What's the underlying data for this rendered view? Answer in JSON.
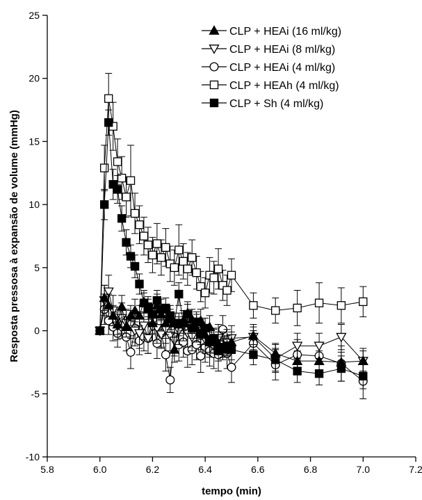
{
  "chart_data": {
    "type": "line",
    "xlabel": "tempo (min)",
    "ylabel": "Resposta pressosa à expansão de volume (mmHg)",
    "xlim": [
      5.8,
      7.2
    ],
    "ylim": [
      -10,
      25
    ],
    "xticks": [
      "5.8",
      "6.0",
      "6.2",
      "6.4",
      "6.6",
      "6.8",
      "7.0",
      "7.2"
    ],
    "yticks": [
      "-10",
      "-5",
      "0",
      "5",
      "10",
      "15",
      "20",
      "25"
    ],
    "grid": false,
    "legend_position": "top-right",
    "series": [
      {
        "name": "CLP + HEAi (16 ml/kg)",
        "marker": "triangle-up-filled",
        "x": [
          6.0,
          6.017,
          6.033,
          6.05,
          6.067,
          6.083,
          6.1,
          6.117,
          6.133,
          6.15,
          6.167,
          6.183,
          6.2,
          6.217,
          6.233,
          6.25,
          6.267,
          6.283,
          6.3,
          6.317,
          6.333,
          6.35,
          6.367,
          6.383,
          6.4,
          6.417,
          6.433,
          6.45,
          6.467,
          6.483,
          6.5,
          6.583,
          6.667,
          6.75,
          6.833,
          6.917,
          7.0
        ],
        "y": [
          0.0,
          2.6,
          2.0,
          1.2,
          0.5,
          1.9,
          0.3,
          1.2,
          1.6,
          1.2,
          2.3,
          1.7,
          0.6,
          2.0,
          1.3,
          0.6,
          0.9,
          -1.5,
          0.5,
          0.8,
          1.4,
          0.9,
          0.2,
          0.8,
          -0.3,
          0.3,
          -0.7,
          -1.0,
          -1.5,
          -1.2,
          -0.9,
          -0.4,
          -1.8,
          -2.4,
          -2.4,
          -2.5,
          -2.4
        ],
        "err": [
          0,
          1.0,
          0.9,
          0.8,
          0.8,
          0.9,
          0.8,
          0.8,
          0.9,
          0.8,
          0.9,
          0.8,
          0.9,
          0.9,
          0.8,
          0.9,
          0.8,
          1.0,
          0.9,
          0.8,
          0.9,
          0.8,
          0.8,
          0.9,
          0.8,
          0.9,
          0.8,
          0.9,
          0.8,
          0.8,
          0.8,
          0.7,
          0.8,
          0.8,
          0.8,
          0.8,
          0.8
        ]
      },
      {
        "name": "CLP + HEAi (8 ml/kg)",
        "marker": "triangle-down-open",
        "x": [
          6.0,
          6.017,
          6.033,
          6.05,
          6.067,
          6.083,
          6.1,
          6.117,
          6.133,
          6.15,
          6.167,
          6.183,
          6.2,
          6.217,
          6.233,
          6.25,
          6.267,
          6.283,
          6.3,
          6.317,
          6.333,
          6.35,
          6.367,
          6.383,
          6.4,
          6.417,
          6.433,
          6.45,
          6.467,
          6.483,
          6.5,
          6.583,
          6.667,
          6.75,
          6.833,
          6.917,
          7.0
        ],
        "y": [
          0.0,
          2.4,
          3.1,
          1.6,
          0.4,
          1.0,
          0.6,
          0.5,
          0.0,
          -0.2,
          0.4,
          -0.6,
          0.3,
          0.2,
          -0.3,
          0.1,
          -0.4,
          -0.8,
          0.0,
          0.4,
          -0.2,
          -0.5,
          0.2,
          -0.3,
          -0.7,
          -1.0,
          -0.8,
          -0.6,
          -1.1,
          -0.9,
          -0.6,
          -0.5,
          -2.2,
          -1.2,
          -1.2,
          -0.5,
          -2.4
        ],
        "err": [
          0,
          1.2,
          1.3,
          1.2,
          1.1,
          1.2,
          1.1,
          1.1,
          1.2,
          1.2,
          1.1,
          1.2,
          1.1,
          1.2,
          1.1,
          1.1,
          1.2,
          1.2,
          1.1,
          1.2,
          1.1,
          1.1,
          1.1,
          1.2,
          1.1,
          1.1,
          1.0,
          1.1,
          1.0,
          1.0,
          1.0,
          1.0,
          1.1,
          1.0,
          1.0,
          1.0,
          1.0
        ]
      },
      {
        "name": "CLP + HEAi (4 ml/kg)",
        "marker": "circle-open",
        "x": [
          6.0,
          6.017,
          6.033,
          6.05,
          6.067,
          6.083,
          6.1,
          6.117,
          6.133,
          6.15,
          6.167,
          6.183,
          6.2,
          6.217,
          6.233,
          6.25,
          6.267,
          6.283,
          6.3,
          6.317,
          6.333,
          6.35,
          6.367,
          6.383,
          6.4,
          6.417,
          6.433,
          6.45,
          6.467,
          6.483,
          6.5,
          6.583,
          6.667,
          6.75,
          6.833,
          6.917,
          7.0
        ],
        "y": [
          0.0,
          1.7,
          0.8,
          0.3,
          -0.2,
          0.6,
          -0.5,
          -1.7,
          0.2,
          -0.8,
          -0.5,
          -0.6,
          0.9,
          -1.0,
          -0.2,
          -1.9,
          -3.9,
          -0.5,
          -1.1,
          -0.9,
          -1.6,
          -1.5,
          -1.1,
          -2.0,
          -1.3,
          -1.6,
          -1.8,
          -1.9,
          0.1,
          -1.8,
          -2.9,
          -1.0,
          -2.7,
          -1.9,
          -2.0,
          -2.6,
          -4.0
        ],
        "err": [
          0,
          1.2,
          1.1,
          1.1,
          1.1,
          1.2,
          1.1,
          1.3,
          1.1,
          1.1,
          1.1,
          1.2,
          1.1,
          1.2,
          1.1,
          1.3,
          1.0,
          1.2,
          1.3,
          1.2,
          1.3,
          1.2,
          1.2,
          1.3,
          1.2,
          1.2,
          1.2,
          1.3,
          1.1,
          1.2,
          1.2,
          1.0,
          1.2,
          1.2,
          1.1,
          1.4,
          1.4
        ]
      },
      {
        "name": "CLP + HEAh (4 ml/kg)",
        "marker": "square-open",
        "x": [
          6.0,
          6.017,
          6.033,
          6.05,
          6.067,
          6.083,
          6.1,
          6.117,
          6.133,
          6.15,
          6.167,
          6.183,
          6.2,
          6.217,
          6.233,
          6.25,
          6.267,
          6.283,
          6.3,
          6.317,
          6.333,
          6.35,
          6.367,
          6.383,
          6.4,
          6.417,
          6.433,
          6.45,
          6.467,
          6.483,
          6.5,
          6.583,
          6.667,
          6.75,
          6.833,
          6.917,
          7.0
        ],
        "y": [
          0.0,
          12.9,
          18.4,
          16.2,
          13.4,
          12.1,
          10.6,
          11.9,
          9.3,
          8.4,
          7.5,
          6.8,
          6.0,
          6.9,
          5.8,
          6.6,
          5.3,
          5.0,
          6.4,
          5.5,
          4.9,
          5.8,
          4.6,
          3.5,
          3.0,
          4.4,
          4.2,
          4.9,
          3.6,
          3.2,
          4.4,
          2.0,
          1.6,
          1.8,
          2.2,
          2.0,
          2.3
        ],
        "err": [
          0,
          1.8,
          2.0,
          1.9,
          1.8,
          1.7,
          1.6,
          2.8,
          1.6,
          1.5,
          1.5,
          1.4,
          1.4,
          1.6,
          1.4,
          1.5,
          1.4,
          1.4,
          2.0,
          1.4,
          1.3,
          1.4,
          1.3,
          1.2,
          1.2,
          1.4,
          1.3,
          1.6,
          1.2,
          1.2,
          1.3,
          1.0,
          1.0,
          1.4,
          1.6,
          1.4,
          1.2
        ]
      },
      {
        "name": "CLP + Sh (4 ml/kg)",
        "marker": "square-filled",
        "x": [
          6.0,
          6.017,
          6.033,
          6.05,
          6.067,
          6.083,
          6.1,
          6.117,
          6.133,
          6.15,
          6.167,
          6.183,
          6.2,
          6.217,
          6.233,
          6.25,
          6.267,
          6.283,
          6.3,
          6.317,
          6.333,
          6.35,
          6.367,
          6.383,
          6.4,
          6.417,
          6.433,
          6.45,
          6.467,
          6.483,
          6.5,
          6.583,
          6.667,
          6.75,
          6.833,
          6.917,
          7.0
        ],
        "y": [
          0.0,
          10.0,
          16.5,
          11.6,
          11.2,
          8.9,
          7.0,
          5.9,
          5.1,
          3.7,
          2.2,
          1.9,
          1.3,
          2.4,
          1.7,
          1.8,
          1.2,
          0.6,
          2.9,
          0.6,
          1.3,
          0.2,
          0.7,
          -0.3,
          0.2,
          -0.9,
          -0.6,
          -1.6,
          -1.3,
          -1.2,
          -1.5,
          -1.9,
          -2.3,
          -3.2,
          -3.4,
          -3.0,
          -3.6
        ],
        "err": [
          0,
          1.2,
          1.0,
          1.2,
          1.1,
          1.0,
          1.0,
          0.9,
          0.9,
          0.8,
          0.8,
          0.8,
          0.8,
          0.8,
          0.8,
          0.8,
          0.8,
          0.8,
          0.9,
          0.8,
          0.8,
          0.8,
          0.8,
          0.8,
          0.8,
          0.8,
          0.8,
          0.8,
          0.8,
          0.8,
          0.8,
          0.8,
          0.9,
          0.9,
          0.9,
          1.0,
          1.0
        ]
      }
    ]
  }
}
